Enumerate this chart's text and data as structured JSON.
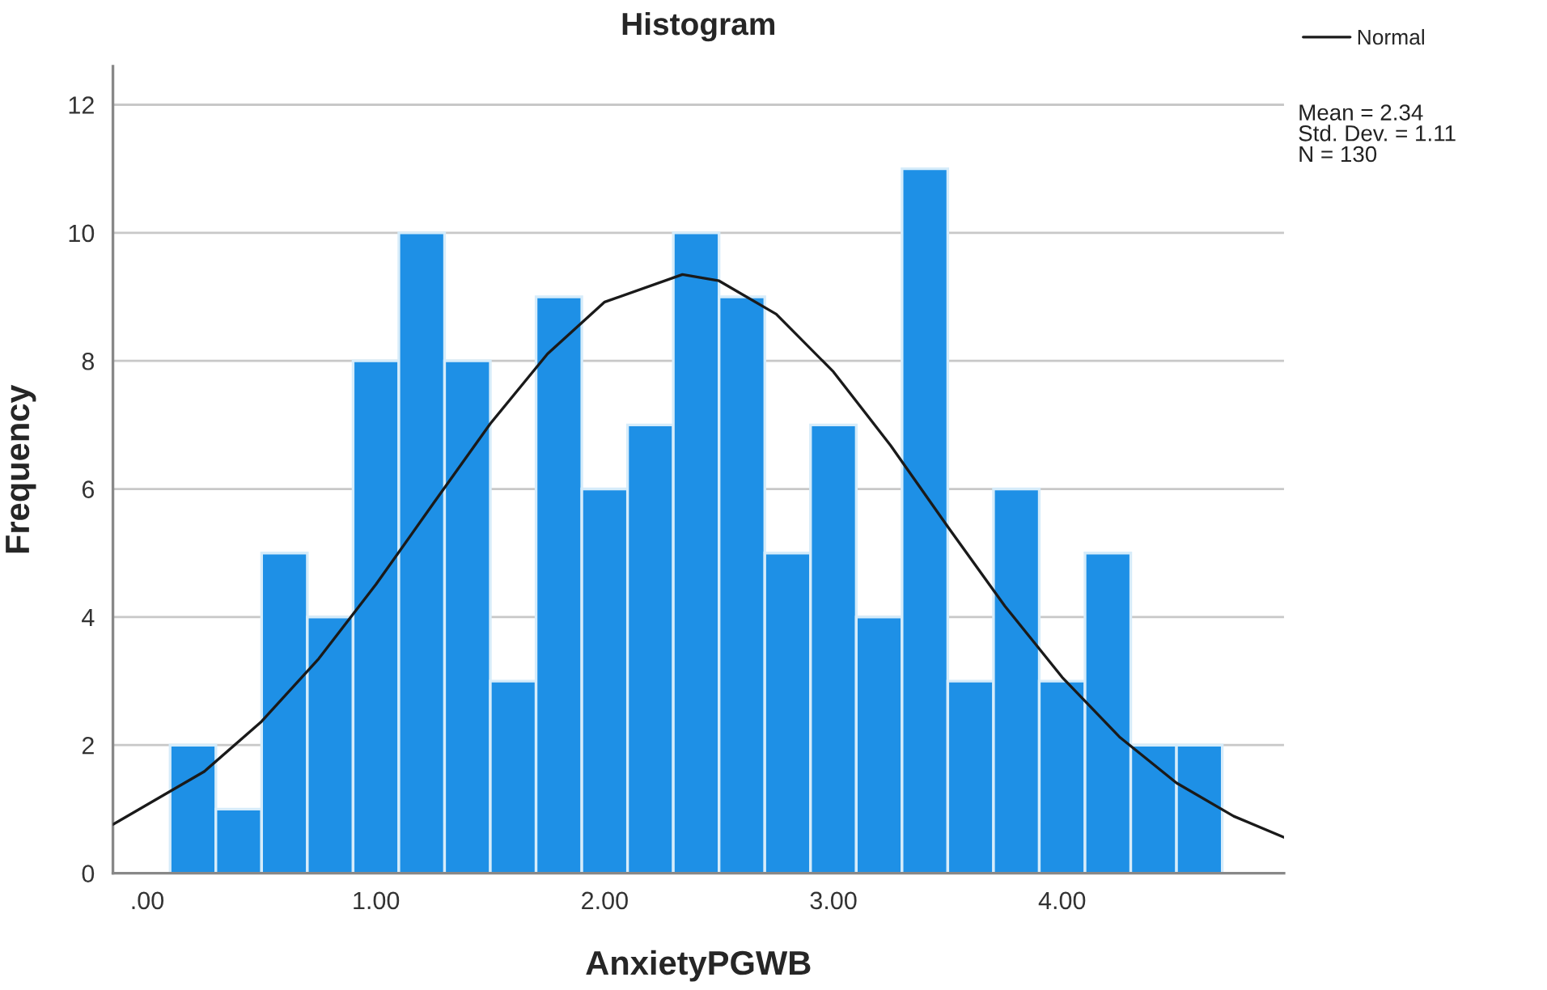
{
  "chart_data": {
    "type": "histogram",
    "title": "Histogram",
    "xlabel": "AnxietyPGWB",
    "ylabel": "Frequency",
    "bins": [
      0.1,
      0.3,
      0.5,
      0.7,
      0.9,
      1.1,
      1.3,
      1.5,
      1.7,
      1.9,
      2.1,
      2.3,
      2.5,
      2.7,
      2.9,
      3.1,
      3.3,
      3.5,
      3.7,
      3.9,
      4.1,
      4.3,
      4.5,
      4.7
    ],
    "values": [
      2,
      1,
      5,
      4,
      8,
      10,
      8,
      3,
      9,
      6,
      7,
      10,
      9,
      5,
      7,
      4,
      11,
      3,
      6,
      3,
      5,
      2,
      2
    ],
    "color": "#1e90e6",
    "series": [
      {
        "name": "Normal",
        "type": "line",
        "color": "#1a1a1a",
        "x": [
          -0.15,
          0.25,
          0.5,
          0.75,
          1.0,
          1.25,
          1.5,
          1.75,
          2.0,
          2.34,
          2.5,
          2.75,
          3.0,
          3.25,
          3.5,
          3.75,
          4.0,
          4.25,
          4.5,
          4.75,
          4.97
        ],
        "values": [
          0.76,
          1.59,
          2.37,
          3.35,
          4.51,
          5.77,
          7.02,
          8.11,
          8.92,
          9.35,
          9.25,
          8.73,
          7.83,
          6.68,
          5.41,
          4.17,
          3.06,
          2.13,
          1.41,
          0.89,
          0.56
        ]
      }
    ],
    "xlim": [
      -0.15,
      4.97
    ],
    "ylim": [
      0,
      12.6
    ],
    "xticks": [
      {
        "value": 0,
        "label": ".00"
      },
      {
        "value": 1,
        "label": "1.00"
      },
      {
        "value": 2,
        "label": "2.00"
      },
      {
        "value": 3,
        "label": "3.00"
      },
      {
        "value": 4,
        "label": "4.00"
      }
    ],
    "yticks": [
      0,
      2,
      4,
      6,
      8,
      10,
      12
    ],
    "grid": "y",
    "legend": "top right",
    "annotations": [
      "Mean = 2.34",
      "Std. Dev. = 1.11",
      "N = 130"
    ]
  }
}
